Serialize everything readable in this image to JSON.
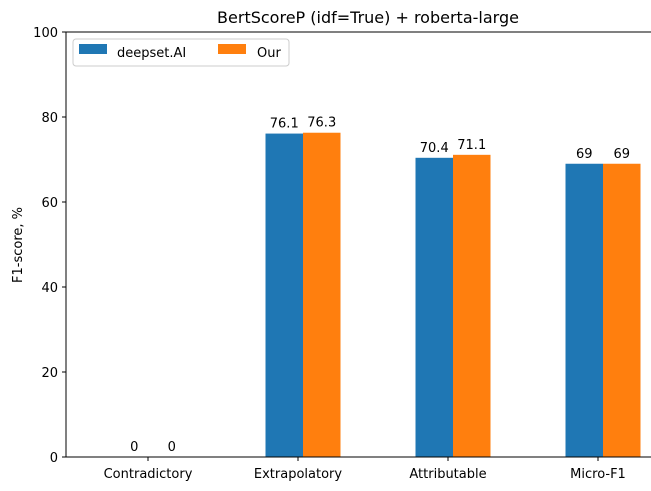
{
  "chart_data": {
    "type": "bar",
    "title": "BertScoreP (idf=True) + roberta-large",
    "xlabel": "",
    "ylabel": "F1-score, %",
    "ylim": [
      0,
      100
    ],
    "yticks": [
      0,
      20,
      40,
      60,
      80,
      100
    ],
    "categories": [
      "Contradictory",
      "Extrapolatory",
      "Attributable",
      "Micro-F1"
    ],
    "series": [
      {
        "name": "deepset.AI",
        "color": "#1f77b4",
        "values": [
          0,
          76.1,
          70.4,
          69
        ],
        "labels": [
          "0",
          "76.1",
          "70.4",
          "69"
        ]
      },
      {
        "name": "Our",
        "color": "#ff7f0e",
        "values": [
          0,
          76.3,
          71.1,
          69
        ],
        "labels": [
          "0",
          "76.3",
          "71.1",
          "69"
        ]
      }
    ],
    "legend": {
      "position": "top-left",
      "columns": 2
    },
    "grid": false
  }
}
